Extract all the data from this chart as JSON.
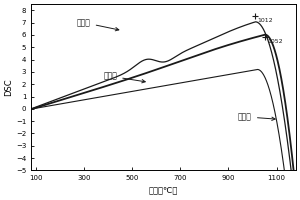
{
  "x_range": [
    80,
    1180
  ],
  "y_range": [
    -5,
    8.5
  ],
  "x_ticks": [
    100,
    300,
    500,
    700,
    900,
    1100
  ],
  "y_ticks": [
    -5,
    -4,
    -3,
    -2,
    -1,
    0,
    1,
    2,
    3,
    4,
    5,
    6,
    7,
    8
  ],
  "xlabel": "温度（℃）",
  "ylabel": "DSC",
  "label_coal": "燃煤渣",
  "label_granite": "花岗岩",
  "label_mixture": "混合物",
  "line_color": "#1a1a1a",
  "coal_peak_x": 1012,
  "coal_peak_y": 7.5,
  "granite_peak_x": 1052,
  "granite_peak_y": 5.8
}
